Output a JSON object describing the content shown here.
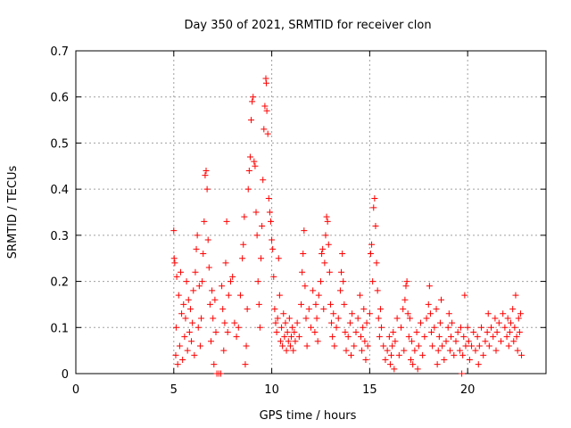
{
  "chart_data": {
    "type": "scatter",
    "title": "Day 350 of 2021, SRMTID for receiver clon",
    "xlabel": "GPS time / hours",
    "ylabel": "SRMTID / TECUs",
    "xlim": [
      0,
      24
    ],
    "ylim": [
      0,
      0.7
    ],
    "xticks": [
      0,
      5,
      10,
      15,
      20
    ],
    "yticks": [
      0,
      0.1,
      0.2,
      0.3,
      0.4,
      0.5,
      0.6,
      0.7
    ],
    "xtick_labels": [
      "0",
      "5",
      "10",
      "15",
      "20"
    ],
    "ytick_labels": [
      "0",
      "0.1",
      "0.2",
      "0.3",
      "0.4",
      "0.5",
      "0.6",
      "0.7"
    ],
    "grid": true,
    "marker": "+",
    "color": "#ff0000",
    "series": [
      {
        "name": "SRMTID",
        "points": [
          [
            5.0,
            0.31
          ],
          [
            5.02,
            0.25
          ],
          [
            5.05,
            0.24
          ],
          [
            5.1,
            0.04
          ],
          [
            5.12,
            0.1
          ],
          [
            5.15,
            0.21
          ],
          [
            5.2,
            0.02
          ],
          [
            5.25,
            0.17
          ],
          [
            5.3,
            0.06
          ],
          [
            5.35,
            0.22
          ],
          [
            5.4,
            0.13
          ],
          [
            5.45,
            0.03
          ],
          [
            5.5,
            0.15
          ],
          [
            5.55,
            0.08
          ],
          [
            5.6,
            0.12
          ],
          [
            5.65,
            0.2
          ],
          [
            5.7,
            0.05
          ],
          [
            5.75,
            0.16
          ],
          [
            5.8,
            0.09
          ],
          [
            5.85,
            0.14
          ],
          [
            5.9,
            0.07
          ],
          [
            5.95,
            0.11
          ],
          [
            6.0,
            0.18
          ],
          [
            6.05,
            0.04
          ],
          [
            6.1,
            0.22
          ],
          [
            6.15,
            0.27
          ],
          [
            6.2,
            0.3
          ],
          [
            6.25,
            0.1
          ],
          [
            6.3,
            0.19
          ],
          [
            6.35,
            0.06
          ],
          [
            6.4,
            0.12
          ],
          [
            6.45,
            0.2
          ],
          [
            6.5,
            0.26
          ],
          [
            6.55,
            0.33
          ],
          [
            6.6,
            0.43
          ],
          [
            6.65,
            0.44
          ],
          [
            6.7,
            0.4
          ],
          [
            6.75,
            0.29
          ],
          [
            6.8,
            0.23
          ],
          [
            6.85,
            0.15
          ],
          [
            6.9,
            0.07
          ],
          [
            6.95,
            0.18
          ],
          [
            7.0,
            0.12
          ],
          [
            7.05,
            0.02
          ],
          [
            7.1,
            0.16
          ],
          [
            7.15,
            0.09
          ],
          [
            7.2,
            0.0
          ],
          [
            7.3,
            0.0
          ],
          [
            7.4,
            0.0
          ],
          [
            7.45,
            0.19
          ],
          [
            7.5,
            0.14
          ],
          [
            7.55,
            0.05
          ],
          [
            7.6,
            0.11
          ],
          [
            7.65,
            0.24
          ],
          [
            7.7,
            0.33
          ],
          [
            7.75,
            0.09
          ],
          [
            7.8,
            0.17
          ],
          [
            7.9,
            0.2
          ],
          [
            8.0,
            0.21
          ],
          [
            8.1,
            0.11
          ],
          [
            8.2,
            0.08
          ],
          [
            8.3,
            0.1
          ],
          [
            8.4,
            0.17
          ],
          [
            8.5,
            0.25
          ],
          [
            8.55,
            0.28
          ],
          [
            8.6,
            0.34
          ],
          [
            8.65,
            0.02
          ],
          [
            8.7,
            0.06
          ],
          [
            8.75,
            0.14
          ],
          [
            8.8,
            0.4
          ],
          [
            8.85,
            0.44
          ],
          [
            8.9,
            0.47
          ],
          [
            8.95,
            0.55
          ],
          [
            9.0,
            0.59
          ],
          [
            9.05,
            0.6
          ],
          [
            9.1,
            0.46
          ],
          [
            9.15,
            0.45
          ],
          [
            9.2,
            0.35
          ],
          [
            9.25,
            0.3
          ],
          [
            9.3,
            0.2
          ],
          [
            9.35,
            0.15
          ],
          [
            9.4,
            0.1
          ],
          [
            9.45,
            0.25
          ],
          [
            9.5,
            0.32
          ],
          [
            9.55,
            0.42
          ],
          [
            9.6,
            0.53
          ],
          [
            9.65,
            0.58
          ],
          [
            9.7,
            0.64
          ],
          [
            9.72,
            0.63
          ],
          [
            9.75,
            0.57
          ],
          [
            9.8,
            0.52
          ],
          [
            9.85,
            0.38
          ],
          [
            9.9,
            0.35
          ],
          [
            9.95,
            0.33
          ],
          [
            10.0,
            0.29
          ],
          [
            10.05,
            0.27
          ],
          [
            10.1,
            0.21
          ],
          [
            10.15,
            0.14
          ],
          [
            10.2,
            0.11
          ],
          [
            10.25,
            0.09
          ],
          [
            10.3,
            0.12
          ],
          [
            10.35,
            0.25
          ],
          [
            10.4,
            0.17
          ],
          [
            10.45,
            0.07
          ],
          [
            10.5,
            0.1
          ],
          [
            10.55,
            0.06
          ],
          [
            10.6,
            0.13
          ],
          [
            10.65,
            0.08
          ],
          [
            10.7,
            0.11
          ],
          [
            10.75,
            0.05
          ],
          [
            10.8,
            0.09
          ],
          [
            10.85,
            0.07
          ],
          [
            10.9,
            0.12
          ],
          [
            10.95,
            0.06
          ],
          [
            11.0,
            0.08
          ],
          [
            11.05,
            0.1
          ],
          [
            11.1,
            0.05
          ],
          [
            11.15,
            0.09
          ],
          [
            11.2,
            0.07
          ],
          [
            11.3,
            0.11
          ],
          [
            11.4,
            0.08
          ],
          [
            11.5,
            0.15
          ],
          [
            11.55,
            0.22
          ],
          [
            11.6,
            0.26
          ],
          [
            11.65,
            0.31
          ],
          [
            11.7,
            0.19
          ],
          [
            11.75,
            0.12
          ],
          [
            11.8,
            0.06
          ],
          [
            11.9,
            0.14
          ],
          [
            12.0,
            0.1
          ],
          [
            12.1,
            0.18
          ],
          [
            12.2,
            0.09
          ],
          [
            12.25,
            0.15
          ],
          [
            12.3,
            0.12
          ],
          [
            12.35,
            0.07
          ],
          [
            12.4,
            0.17
          ],
          [
            12.5,
            0.2
          ],
          [
            12.55,
            0.26
          ],
          [
            12.6,
            0.27
          ],
          [
            12.65,
            0.14
          ],
          [
            12.7,
            0.24
          ],
          [
            12.75,
            0.3
          ],
          [
            12.8,
            0.34
          ],
          [
            12.85,
            0.33
          ],
          [
            12.9,
            0.28
          ],
          [
            12.95,
            0.22
          ],
          [
            13.0,
            0.15
          ],
          [
            13.05,
            0.11
          ],
          [
            13.1,
            0.08
          ],
          [
            13.15,
            0.13
          ],
          [
            13.2,
            0.06
          ],
          [
            13.3,
            0.1
          ],
          [
            13.4,
            0.12
          ],
          [
            13.5,
            0.18
          ],
          [
            13.55,
            0.22
          ],
          [
            13.6,
            0.26
          ],
          [
            13.65,
            0.2
          ],
          [
            13.7,
            0.15
          ],
          [
            13.75,
            0.09
          ],
          [
            13.8,
            0.05
          ],
          [
            13.9,
            0.08
          ],
          [
            14.0,
            0.11
          ],
          [
            14.05,
            0.04
          ],
          [
            14.1,
            0.13
          ],
          [
            14.2,
            0.06
          ],
          [
            14.3,
            0.09
          ],
          [
            14.4,
            0.12
          ],
          [
            14.5,
            0.17
          ],
          [
            14.55,
            0.08
          ],
          [
            14.6,
            0.05
          ],
          [
            14.65,
            0.1
          ],
          [
            14.7,
            0.14
          ],
          [
            14.75,
            0.07
          ],
          [
            14.8,
            0.03
          ],
          [
            14.85,
            0.11
          ],
          [
            14.9,
            0.06
          ],
          [
            15.0,
            0.13
          ],
          [
            15.05,
            0.26
          ],
          [
            15.1,
            0.28
          ],
          [
            15.15,
            0.2
          ],
          [
            15.2,
            0.36
          ],
          [
            15.25,
            0.38
          ],
          [
            15.3,
            0.32
          ],
          [
            15.35,
            0.24
          ],
          [
            15.4,
            0.18
          ],
          [
            15.45,
            0.12
          ],
          [
            15.5,
            0.08
          ],
          [
            15.55,
            0.14
          ],
          [
            15.6,
            0.1
          ],
          [
            15.7,
            0.06
          ],
          [
            15.8,
            0.03
          ],
          [
            15.9,
            0.05
          ],
          [
            16.0,
            0.08
          ],
          [
            16.05,
            0.02
          ],
          [
            16.1,
            0.04
          ],
          [
            16.15,
            0.06
          ],
          [
            16.2,
            0.09
          ],
          [
            16.25,
            0.01
          ],
          [
            16.3,
            0.07
          ],
          [
            16.4,
            0.12
          ],
          [
            16.5,
            0.04
          ],
          [
            16.6,
            0.1
          ],
          [
            16.7,
            0.14
          ],
          [
            16.75,
            0.05
          ],
          [
            16.8,
            0.16
          ],
          [
            16.85,
            0.19
          ],
          [
            16.9,
            0.2
          ],
          [
            16.95,
            0.13
          ],
          [
            17.0,
            0.08
          ],
          [
            17.05,
            0.12
          ],
          [
            17.1,
            0.03
          ],
          [
            17.15,
            0.07
          ],
          [
            17.2,
            0.02
          ],
          [
            17.3,
            0.05
          ],
          [
            17.4,
            0.09
          ],
          [
            17.45,
            0.01
          ],
          [
            17.5,
            0.06
          ],
          [
            17.6,
            0.11
          ],
          [
            17.7,
            0.04
          ],
          [
            17.8,
            0.08
          ],
          [
            17.9,
            0.12
          ],
          [
            18.0,
            0.15
          ],
          [
            18.05,
            0.19
          ],
          [
            18.1,
            0.13
          ],
          [
            18.15,
            0.09
          ],
          [
            18.2,
            0.06
          ],
          [
            18.3,
            0.1
          ],
          [
            18.4,
            0.14
          ],
          [
            18.45,
            0.02
          ],
          [
            18.5,
            0.05
          ],
          [
            18.55,
            0.08
          ],
          [
            18.6,
            0.11
          ],
          [
            18.65,
            0.16
          ],
          [
            18.7,
            0.06
          ],
          [
            18.8,
            0.03
          ],
          [
            18.9,
            0.07
          ],
          [
            19.0,
            0.1
          ],
          [
            19.05,
            0.13
          ],
          [
            19.1,
            0.05
          ],
          [
            19.15,
            0.08
          ],
          [
            19.2,
            0.11
          ],
          [
            19.3,
            0.04
          ],
          [
            19.4,
            0.07
          ],
          [
            19.5,
            0.09
          ],
          [
            19.6,
            0.05
          ],
          [
            19.65,
            0.1
          ],
          [
            19.7,
            0.0
          ],
          [
            19.75,
            0.04
          ],
          [
            19.8,
            0.08
          ],
          [
            19.85,
            0.17
          ],
          [
            19.9,
            0.06
          ],
          [
            20.0,
            0.1
          ],
          [
            20.05,
            0.07
          ],
          [
            20.1,
            0.03
          ],
          [
            20.2,
            0.06
          ],
          [
            20.3,
            0.09
          ],
          [
            20.4,
            0.05
          ],
          [
            20.5,
            0.08
          ],
          [
            20.55,
            0.02
          ],
          [
            20.6,
            0.06
          ],
          [
            20.7,
            0.1
          ],
          [
            20.8,
            0.04
          ],
          [
            20.9,
            0.07
          ],
          [
            21.0,
            0.09
          ],
          [
            21.05,
            0.13
          ],
          [
            21.1,
            0.06
          ],
          [
            21.2,
            0.1
          ],
          [
            21.3,
            0.08
          ],
          [
            21.4,
            0.12
          ],
          [
            21.45,
            0.05
          ],
          [
            21.5,
            0.09
          ],
          [
            21.6,
            0.11
          ],
          [
            21.7,
            0.07
          ],
          [
            21.8,
            0.13
          ],
          [
            21.9,
            0.1
          ],
          [
            22.0,
            0.08
          ],
          [
            22.05,
            0.12
          ],
          [
            22.1,
            0.06
          ],
          [
            22.15,
            0.09
          ],
          [
            22.2,
            0.11
          ],
          [
            22.3,
            0.14
          ],
          [
            22.35,
            0.07
          ],
          [
            22.4,
            0.1
          ],
          [
            22.45,
            0.17
          ],
          [
            22.5,
            0.08
          ],
          [
            22.55,
            0.05
          ],
          [
            22.6,
            0.12
          ],
          [
            22.65,
            0.09
          ],
          [
            22.7,
            0.13
          ],
          [
            22.75,
            0.04
          ]
        ]
      }
    ]
  }
}
